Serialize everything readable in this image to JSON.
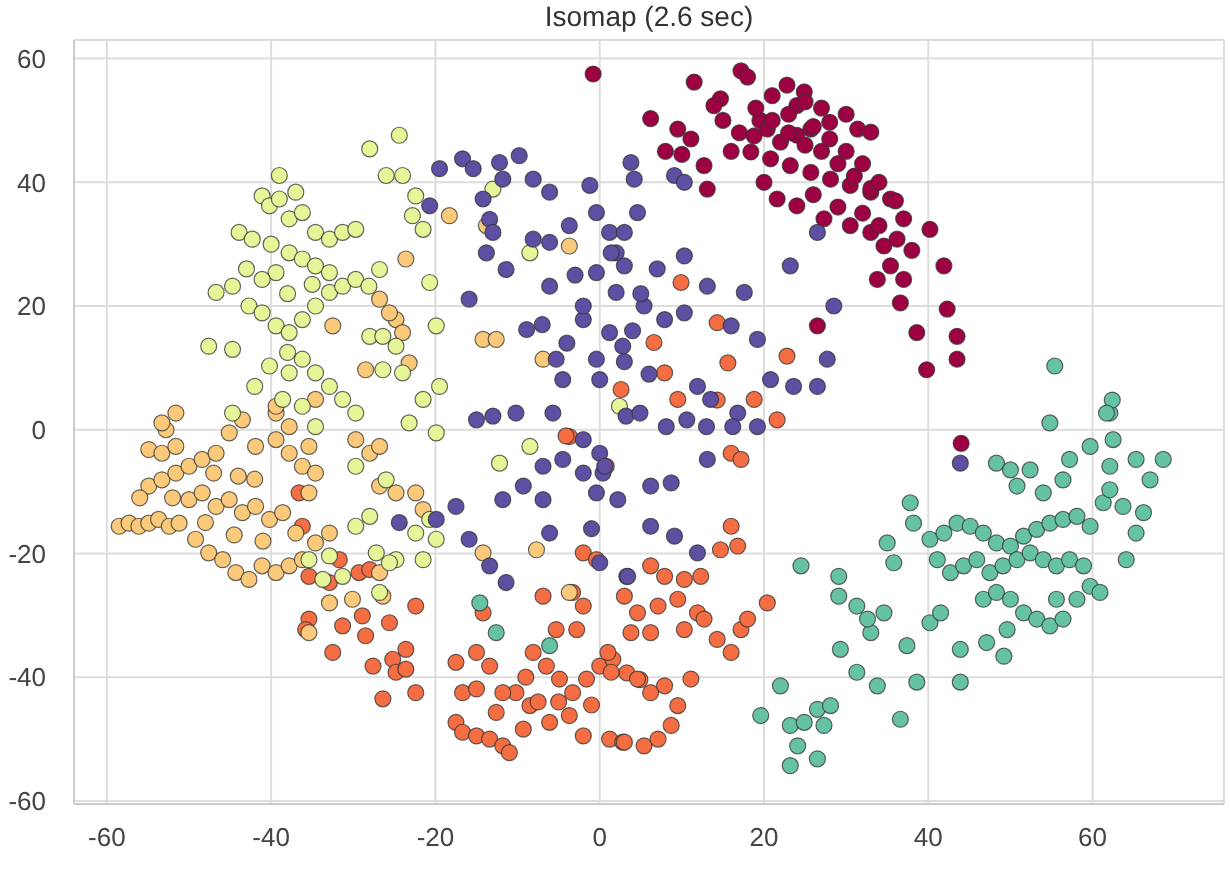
{
  "chart_data": {
    "type": "scatter",
    "title": "Isomap (2.6 sec)",
    "marker": "circle",
    "grid": true,
    "xlim": [
      -64,
      76
    ],
    "ylim": [
      -60.5,
      63
    ],
    "xticks": [
      -60,
      -40,
      -20,
      0,
      20,
      40,
      60
    ],
    "yticks": [
      -60,
      -40,
      -20,
      0,
      20,
      40,
      60
    ],
    "series": [
      {
        "color": "#9e0142",
        "x": [
          -0.8,
          11.5,
          17.2,
          18,
          6.2,
          14.7,
          13.9,
          9.5,
          11.1,
          12.7,
          13.1,
          22.8,
          24.9,
          24,
          19.5,
          18.8,
          20.4,
          22,
          24,
          25.7,
          28,
          31.4,
          33,
          18.4,
          20.8,
          23.2,
          25.7,
          28.1,
          30.5,
          33,
          35.4,
          21.6,
          24,
          27.3,
          30.5,
          33,
          34.6,
          37,
          36.2,
          40.2,
          41.9,
          42.3,
          43.5,
          43.5,
          39.8,
          36.6,
          38.6,
          33.8,
          35.4,
          37,
          26.5,
          44,
          15,
          17,
          19,
          21,
          23,
          25,
          27,
          29,
          31,
          33,
          16,
          20,
          26,
          28,
          30,
          32,
          34,
          36,
          38,
          21,
          23,
          26,
          29,
          32,
          34,
          30,
          27,
          25,
          8,
          10
        ],
        "values": [
          57.5,
          56.2,
          58,
          57,
          50.3,
          53.5,
          52.4,
          48.6,
          47,
          42.7,
          38.9,
          55.7,
          54.6,
          52.4,
          50,
          47.5,
          48.6,
          46.5,
          47.6,
          48.6,
          49.7,
          48.6,
          48.1,
          44.9,
          43.8,
          42.7,
          41.6,
          40.5,
          39.5,
          38.4,
          37.3,
          37.3,
          36.2,
          34.1,
          33,
          31.9,
          29.7,
          34.1,
          30.8,
          32.4,
          26.5,
          19.5,
          15.1,
          11.4,
          9.7,
          20.5,
          15.7,
          24.3,
          26.5,
          24.3,
          16.8,
          -2.2,
          50,
          48,
          52,
          50,
          48,
          46,
          45,
          43,
          41,
          39,
          45,
          40,
          49,
          47,
          45,
          43,
          40,
          37,
          29,
          54,
          51,
          38,
          36,
          35,
          33,
          51,
          52,
          53,
          45,
          44.5
        ]
      },
      {
        "color": "#f46d43",
        "x": [
          -36.6,
          -36.2,
          -35.4,
          -32.9,
          -31.7,
          -29.3,
          -28,
          -35.4,
          -35.8,
          -32.5,
          -31.3,
          -28.9,
          -28.5,
          -25.6,
          -22.4,
          -27.6,
          -25.2,
          -24.8,
          -23.6,
          -22.4,
          -26.4,
          -23.6,
          -17.5,
          -16.7,
          -15,
          -13.4,
          -17.5,
          -16.7,
          -15,
          -13.4,
          -11.8,
          -11,
          -12.6,
          -10.2,
          -8.5,
          -11.8,
          -8.1,
          -6.5,
          -4.9,
          -3.3,
          -1.6,
          0,
          1.6,
          3.3,
          4.9,
          -9.3,
          -6.1,
          -3.7,
          -2,
          1.2,
          2.8,
          -15,
          -14.2,
          -6.9,
          -5.3,
          -2.8,
          -2,
          -3.3,
          -2,
          -0.4,
          -3.7,
          0.8,
          1,
          1.4,
          4.6,
          6.2,
          7.9,
          9.5,
          11.1,
          8.7,
          3,
          5.4,
          7.1,
          3,
          4.6,
          7.1,
          9.5,
          11.9,
          12.7,
          10.3,
          6.2,
          3.8,
          14.3,
          16,
          17.2,
          18,
          20.4,
          6.2,
          7.9,
          10.3,
          12.3,
          14.7,
          16.8,
          16,
          16,
          17.2,
          21.6,
          14.3,
          9.9,
          14.3,
          6.6,
          7.9,
          9.5,
          18.8,
          22.8,
          15.6,
          2.6,
          -4.1,
          -7.5,
          -5,
          -1,
          -9
        ],
        "values": [
          -10.2,
          -15.6,
          -23.7,
          -24.7,
          -21,
          -23.1,
          -22.6,
          -30.6,
          -32.3,
          -36,
          -31.7,
          -30.1,
          -33.3,
          -31.2,
          -28.5,
          -38.2,
          -37.1,
          -39.2,
          -38.7,
          -42.5,
          -43.5,
          -35.5,
          -37.6,
          -42.5,
          -41.9,
          -38.2,
          -47.3,
          -48.9,
          -49.5,
          -50,
          -51.1,
          -52.2,
          -45.7,
          -42.5,
          -44.6,
          -42.5,
          -36,
          -38.2,
          -40.3,
          -42.5,
          -40.3,
          -38.2,
          -37.1,
          -39.3,
          -40.4,
          -48.4,
          -47.3,
          -46.2,
          -49.5,
          -50,
          -50.5,
          -36,
          -29.6,
          -26.9,
          -32.3,
          -32.3,
          -28.5,
          -26.3,
          -19.9,
          -21,
          -1.1,
          -5.9,
          -36,
          -39.2,
          -40.3,
          -42.5,
          -41.4,
          -44.6,
          -40.3,
          -47.8,
          -50.5,
          -51.1,
          -50,
          -26.9,
          -29.6,
          -28.5,
          -27.4,
          -29.6,
          -30.6,
          -32.3,
          -32.8,
          -32.8,
          -33.9,
          -36,
          -32.3,
          -30.6,
          -28,
          -22,
          -23.7,
          -24.2,
          -23.7,
          -19.4,
          -18.8,
          -15.6,
          -3.8,
          -4.8,
          1.6,
          4.8,
          23.8,
          17.3,
          14.1,
          9.2,
          4.9,
          4.9,
          11.9,
          10.8,
          6.5,
          -1,
          -44,
          -44,
          -44.5,
          -40
        ]
      },
      {
        "color": "#fbc97a",
        "x": [
          -58.5,
          -57.3,
          -56.1,
          -54.9,
          -53.7,
          -52.4,
          -51.2,
          -54.9,
          -53.3,
          -51.6,
          -52.8,
          -51.6,
          -53.3,
          -54.9,
          -53.3,
          -51.6,
          -50,
          -48.4,
          -46.7,
          -50,
          -48.4,
          -46.7,
          -45.1,
          -43.5,
          -41.9,
          -40.2,
          -38.6,
          -37,
          -49.2,
          -47.6,
          -45.9,
          -44.3,
          -42.7,
          -41.1,
          -39.4,
          -37.8,
          -36.2,
          -45.1,
          -43.5,
          -41.9,
          -39.4,
          -37.8,
          -36.2,
          -34.6,
          -35.4,
          -39.4,
          -37.8,
          -29.7,
          -28,
          -26.8,
          -26.8,
          -24.8,
          -22.4,
          -21.5,
          -35.4,
          -32.9,
          -34.6,
          -26.8,
          -26.4,
          -30.1,
          -32.9,
          -35.4,
          -14.2,
          -7.7,
          -3.7,
          -13.8,
          -3.7,
          -18.3,
          -23.6,
          -24.8,
          -24,
          -14.2,
          -12.6,
          -6.9,
          -26.8,
          -25.6,
          -23.2,
          -32.5,
          -39.4,
          -34.6,
          -28.5,
          -47,
          -44,
          -42,
          -48,
          -44.5,
          -41,
          -52,
          -56
        ],
        "values": [
          -15.6,
          -15.1,
          -15.6,
          -15.1,
          -14.5,
          -15.6,
          -15.1,
          -3.2,
          -3.8,
          -2.7,
          0,
          2.7,
          1.1,
          -9.1,
          -8.1,
          -7,
          -5.9,
          -4.8,
          -3.8,
          -11.3,
          -10.2,
          -12.4,
          -11.3,
          -13.4,
          -12.4,
          -14.5,
          -13.4,
          -16.7,
          -17.7,
          -19.9,
          -21,
          -23.1,
          -24.2,
          -22,
          -23.1,
          -22,
          -21,
          -0.5,
          1.6,
          -2.7,
          -1.6,
          -3.8,
          -5.9,
          -7,
          -2.7,
          2.7,
          0.5,
          -1.6,
          -3.8,
          -2.7,
          -9.1,
          -10.2,
          -10.2,
          -12.9,
          -10.2,
          -16.7,
          -18.3,
          -23.1,
          -26.9,
          -27.4,
          -28,
          -32.8,
          -19.9,
          -19.4,
          -26.3,
          33,
          29.7,
          34.6,
          27.6,
          17.8,
          15.7,
          14.6,
          14.6,
          11.4,
          21.1,
          18.9,
          10.8,
          16.8,
          3.8,
          4.9,
          9.7,
          -7,
          -7.5,
          -8,
          -15,
          -17,
          -18,
          -11,
          -11
        ]
      },
      {
        "color": "#e6f598",
        "x": [
          -39,
          -41.1,
          -40.2,
          -39,
          -37,
          -43.9,
          -42.3,
          -46.7,
          -44.7,
          -47.6,
          -44.7,
          -42.7,
          -41.1,
          -39.4,
          -37.8,
          -36.2,
          -34.6,
          -32.9,
          -31.3,
          -29.7,
          -28.1,
          -26.8,
          -37.8,
          -36.2,
          -34.6,
          -32.9,
          -31.3,
          -29.7,
          -37.8,
          -36.2,
          -34.6,
          -32.9,
          -39.4,
          -41.1,
          -28,
          -24.4,
          -26,
          -24,
          -22.4,
          -22.8,
          -21.5,
          -20.7,
          -19.9,
          -28,
          -26.4,
          -24.8,
          -26.4,
          -24,
          -40.2,
          -37.8,
          -36.2,
          -34.6,
          -32.9,
          -31.3,
          -29.7,
          -38.6,
          -36.2,
          -34.6,
          -19.5,
          -21.5,
          -23.2,
          -8.5,
          -13,
          2.4,
          -44.7,
          -29.7,
          -26,
          -22.4,
          -20.7,
          -19.9,
          -21.5,
          -24.8,
          -29.7,
          -28,
          -32.9,
          -35.4,
          -33.7,
          -31.3,
          -26.8,
          -25.6,
          -27.2,
          -19.9,
          -12.2,
          -8.5,
          -38,
          -35,
          -40,
          -43,
          -38,
          -42
        ],
        "values": [
          41.1,
          37.8,
          36.2,
          37.3,
          38.4,
          31.9,
          30.8,
          22.2,
          23.2,
          13.5,
          13,
          20,
          18.9,
          16.8,
          15.7,
          17.8,
          20,
          22.2,
          23.2,
          24.3,
          23.2,
          25.9,
          34.1,
          35.1,
          31.9,
          30.8,
          31.9,
          32.4,
          28.6,
          27.6,
          26.5,
          25.4,
          25.4,
          24.3,
          45.4,
          47.6,
          41.1,
          41.1,
          37.8,
          34.6,
          32.4,
          23.8,
          16.8,
          15.1,
          15.1,
          13.5,
          9.7,
          9.2,
          10.3,
          9.2,
          11.4,
          9.2,
          7,
          4.9,
          2.7,
          4.9,
          3.8,
          0.5,
          7,
          4.9,
          1.1,
          28.6,
          38.9,
          3.8,
          2.7,
          -5.9,
          -8.1,
          -16.7,
          -14.5,
          -17.7,
          -21,
          -21,
          -15.6,
          -14,
          -20.4,
          -21,
          -24.2,
          -23.7,
          -26.3,
          -21.5,
          -19.9,
          -0.5,
          -5.4,
          -2.7,
          22,
          23.5,
          30,
          26,
          12.5,
          7
        ]
      },
      {
        "color": "#66c2a5",
        "x": [
          19.6,
          22,
          23.2,
          24.9,
          26.5,
          28.1,
          27.3,
          23.2,
          26.5,
          24.1,
          24.5,
          29.1,
          29.1,
          31.3,
          33,
          34.6,
          32.6,
          29.3,
          31.3,
          33.8,
          36.6,
          35,
          35.8,
          37.8,
          38.2,
          37.4,
          38.6,
          40.2,
          41.5,
          43.9,
          43.9,
          47.1,
          49.2,
          49.6,
          40.2,
          41.9,
          43.5,
          45.1,
          46.7,
          48.3,
          50,
          51.6,
          53.2,
          54.8,
          56.4,
          58.1,
          59.7,
          41.1,
          42.7,
          44.3,
          45.9,
          47.5,
          49.1,
          50.8,
          52.4,
          54,
          55.6,
          57.2,
          58.9,
          46.7,
          48.3,
          50,
          51.6,
          53.2,
          54.8,
          56.4,
          58.1,
          59.7,
          60.9,
          55.6,
          48.3,
          50,
          52.4,
          50.8,
          54,
          56.4,
          54.8,
          57.2,
          59.7,
          62.1,
          62.5,
          62.1,
          65.3,
          67,
          68.6,
          66.2,
          65.3,
          64.1,
          61.3,
          62.1,
          63.7,
          55.4,
          62.4,
          61.7,
          -14.6,
          -12.6,
          -6.1
        ],
        "values": [
          -46.2,
          -41.4,
          -47.8,
          -47.3,
          -45.2,
          -44.6,
          -47.8,
          -54.3,
          -53.2,
          -51.1,
          -22,
          -23.7,
          -26.9,
          -28.5,
          -32.8,
          -29.6,
          -30.6,
          -35.5,
          -39.2,
          -41.4,
          -46.8,
          -18.3,
          -21.5,
          -11.8,
          -15.1,
          -34.9,
          -40.8,
          -31.2,
          -29.6,
          -35.5,
          -40.8,
          -34.4,
          -36.6,
          -32.3,
          -17.7,
          -16.7,
          -15.1,
          -15.6,
          -16.7,
          -18.3,
          -18.8,
          -17.2,
          -16.1,
          -15.1,
          -14.5,
          -14,
          -15.6,
          -21,
          -23.1,
          -22,
          -21,
          -23.1,
          -22,
          -21,
          -19.9,
          -21,
          -22,
          -21,
          -22,
          -27.4,
          -26.3,
          -27.4,
          -29.6,
          -30.6,
          -31.7,
          -30.6,
          -27.4,
          -25.3,
          -26.3,
          -27.4,
          -5.4,
          -6.5,
          -6.5,
          -9.1,
          -10.2,
          -8.1,
          1.1,
          -4.8,
          -2.7,
          -5.9,
          -1.6,
          2.7,
          -4.8,
          -8.1,
          -4.8,
          -13.4,
          -16.7,
          -21,
          -11.8,
          -9.7,
          -12.4,
          10.3,
          4.8,
          2.7,
          -28,
          -32.8,
          -34.9
        ]
      },
      {
        "color": "#5e4fa2",
        "x": [
          -19.5,
          -16.7,
          -15.4,
          -12.2,
          -11.8,
          -9.8,
          -8.1,
          -6.1,
          -20.7,
          -14.2,
          -13.4,
          -13,
          -13.8,
          -11.4,
          -8.1,
          -6.1,
          -3.7,
          -6.1,
          -15.9,
          -8.9,
          -5.3,
          -4.5,
          -1.2,
          -0.4,
          1.2,
          2,
          -0.4,
          2,
          -2,
          1.2,
          -0.4,
          2.8,
          0,
          -15,
          -13,
          -10.2,
          -5.7,
          3.8,
          4.2,
          9.1,
          10.3,
          4.6,
          3,
          1.4,
          3,
          26.5,
          23.2,
          10.3,
          13.1,
          17.6,
          5.4,
          7.9,
          10.3,
          16,
          19.2,
          20.8,
          23.6,
          26.5,
          27.7,
          28.5,
          11.9,
          13.5,
          16.8,
          19.2,
          -24.4,
          -19.9,
          -17.5,
          -15.9,
          -13.4,
          -11.4,
          -11.8,
          -9.3,
          -6.9,
          -6.1,
          -6.9,
          -4.5,
          -2,
          -0.4,
          0.4,
          -2,
          0,
          0,
          3.3,
          3.2,
          4.9,
          8.1,
          10.6,
          13,
          16.2,
          0.6,
          2.2,
          6.2,
          8.7,
          6.2,
          9.1,
          11.9,
          3.4,
          13.1,
          43.9,
          -3,
          5,
          -2,
          4,
          -4,
          3,
          6,
          -7,
          7,
          -1
        ],
        "values": [
          42.2,
          43.8,
          42.2,
          43.2,
          40.5,
          44.3,
          40.5,
          38.4,
          36.2,
          37.3,
          34,
          31.9,
          28.6,
          25.9,
          30.8,
          30.3,
          33,
          23.2,
          21.1,
          16.2,
          11.4,
          8.1,
          39.5,
          35.1,
          31.9,
          28.6,
          25.4,
          22.2,
          17.8,
          15.7,
          11.4,
          13.5,
          8.1,
          1.6,
          2.2,
          2.7,
          2.7,
          43.2,
          40.5,
          41.1,
          40,
          35.1,
          31.9,
          28.6,
          26.5,
          31.9,
          26.5,
          28.1,
          23.2,
          22.2,
          20,
          17.8,
          18.9,
          16.8,
          14.6,
          8.1,
          7,
          7,
          11.4,
          20,
          7,
          4.9,
          2.7,
          0.5,
          -15,
          -14.5,
          -12.4,
          -17.7,
          -22,
          -24.7,
          -11.3,
          -9.1,
          -11.3,
          -16.7,
          -5.9,
          -4.8,
          -7,
          -10.2,
          -7,
          -1.6,
          -3.8,
          -21.5,
          -23.7,
          2.2,
          2.7,
          0.5,
          1.6,
          0.5,
          0.5,
          -5.9,
          -11.3,
          -9.1,
          -8.6,
          -15.6,
          -17.2,
          -19.9,
          -23.7,
          -4.8,
          -5.4,
          25,
          22,
          20,
          16,
          14,
          11,
          9,
          17,
          26,
          -16
        ]
      }
    ]
  }
}
